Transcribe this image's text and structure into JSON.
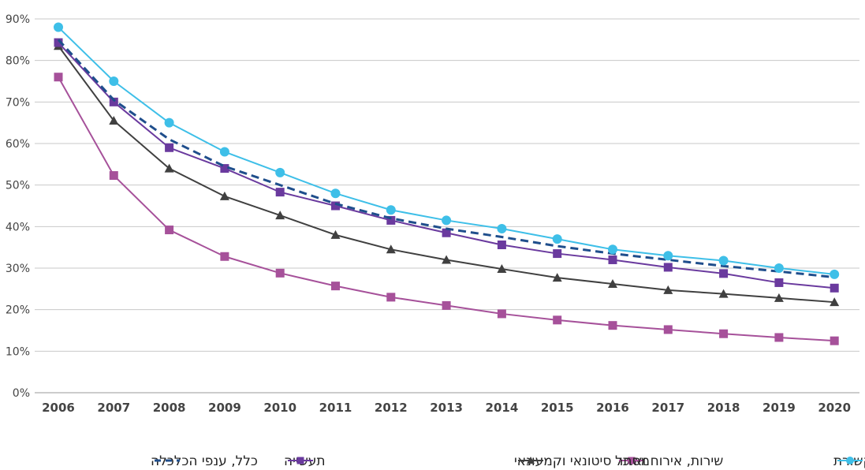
{
  "chart_data": {
    "type": "line",
    "title": "",
    "xlabel": "",
    "ylabel": "",
    "categories": [
      "2006",
      "2007",
      "2008",
      "2009",
      "2010",
      "2011",
      "2012",
      "2013",
      "2014",
      "2015",
      "2016",
      "2017",
      "2018",
      "2019",
      "2020"
    ],
    "y_ticks": [
      "0%",
      "10%",
      "20%",
      "30%",
      "40%",
      "50%",
      "60%",
      "70%",
      "80%",
      "90%"
    ],
    "ylim": [
      0,
      90
    ],
    "grid": true,
    "legend_position": "bottom",
    "series": [
      {
        "name": "מידע, תקשורת",
        "color": "#3EBFE8",
        "marker": "circle",
        "dash": false,
        "values": [
          88,
          75,
          65,
          58,
          53,
          48,
          44,
          41.5,
          39.5,
          37,
          34.5,
          33,
          31.8,
          30,
          28.5
        ]
      },
      {
        "name": "שירות, אירוח ואוכל",
        "color": "#A6519A",
        "marker": "square",
        "dash": false,
        "values": [
          76,
          52.3,
          39.2,
          32.8,
          28.8,
          25.7,
          23,
          21,
          19,
          17.5,
          16.2,
          15.2,
          14.2,
          13.3,
          12.5
        ]
      },
      {
        "name": "מסחר סיטונאי וקמעונאי",
        "color": "#404040",
        "marker": "triangle",
        "dash": false,
        "values": [
          83.5,
          65.5,
          54,
          47.3,
          42.7,
          38,
          34.5,
          32,
          29.8,
          27.7,
          26.2,
          24.7,
          23.8,
          22.8,
          21.8
        ]
      },
      {
        "name": "תעשייה",
        "color": "#6A3A9E",
        "marker": "square",
        "dash": false,
        "values": [
          84.3,
          70,
          59,
          54,
          48.3,
          45,
          41.5,
          38.5,
          35.6,
          33.5,
          32,
          30.2,
          28.7,
          26.5,
          25.2
        ]
      },
      {
        "name": "כלל, ענפי הכלכלה",
        "color": "#1F4E8C",
        "marker": "none",
        "dash": true,
        "values": [
          85,
          70.5,
          61,
          54.5,
          50,
          45.5,
          42,
          39.5,
          37.5,
          35.3,
          33.5,
          32,
          30.5,
          29.2,
          27.8
        ]
      }
    ]
  }
}
